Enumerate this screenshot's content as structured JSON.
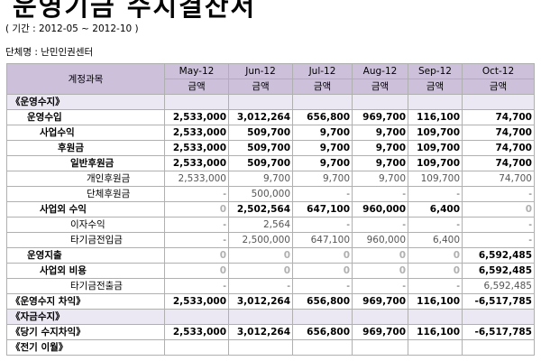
{
  "header": {
    "title": "운영기금 수지결산서",
    "period": "( 기간 :  2012-05 ~ 2012-10 )",
    "org": "단체명 : 난민인권센터"
  },
  "table": {
    "account_header": "계정과목",
    "months": [
      "May-12",
      "Jun-12",
      "Jul-12",
      "Aug-12",
      "Sep-12",
      "Oct-12"
    ],
    "amount_label": "금액",
    "rows": [
      {
        "name": "《운영수지》",
        "indent": 0,
        "style": "shade",
        "values": [
          "",
          "",
          "",
          "",
          "",
          ""
        ]
      },
      {
        "name": "운영수입",
        "indent": 1,
        "style": "bold",
        "values": [
          "2,533,000",
          "3,012,264",
          "656,800",
          "969,700",
          "116,100",
          "74,700"
        ]
      },
      {
        "name": "사업수익",
        "indent": 2,
        "style": "bold",
        "values": [
          "2,533,000",
          "509,700",
          "9,700",
          "9,700",
          "109,700",
          "74,700"
        ]
      },
      {
        "name": "후원금",
        "indent": 3,
        "style": "bold",
        "values": [
          "2,533,000",
          "509,700",
          "9,700",
          "9,700",
          "109,700",
          "74,700"
        ]
      },
      {
        "name": "일반후원금",
        "indent": 4,
        "style": "bold",
        "values": [
          "2,533,000",
          "509,700",
          "9,700",
          "9,700",
          "109,700",
          "74,700"
        ]
      },
      {
        "name": "개인후원금",
        "indent": 5,
        "style": "light",
        "values": [
          "2,533,000",
          "9,700",
          "9,700",
          "9,700",
          "109,700",
          "74,700"
        ]
      },
      {
        "name": "단체후원금",
        "indent": 5,
        "style": "light",
        "values": [
          "-",
          "500,000",
          "-",
          "-",
          "-",
          "-"
        ]
      },
      {
        "name": "사업외 수익",
        "indent": 2,
        "style": "bold",
        "values": [
          "0",
          "2,502,564",
          "647,100",
          "960,000",
          "6,400",
          "0"
        ]
      },
      {
        "name": "이자수익",
        "indent": 4,
        "style": "light",
        "values": [
          "-",
          "2,564",
          "-",
          "-",
          "-",
          "-"
        ]
      },
      {
        "name": "타기금전입금",
        "indent": 4,
        "style": "light",
        "values": [
          "-",
          "2,500,000",
          "647,100",
          "960,000",
          "6,400",
          "-"
        ]
      },
      {
        "name": "운영지출",
        "indent": 1,
        "style": "bold",
        "values": [
          "0",
          "0",
          "0",
          "0",
          "0",
          "6,592,485"
        ]
      },
      {
        "name": "사업외 비용",
        "indent": 2,
        "style": "bold",
        "values": [
          "0",
          "0",
          "0",
          "0",
          "0",
          "6,592,485"
        ]
      },
      {
        "name": "타기금전출금",
        "indent": 4,
        "style": "light",
        "values": [
          "-",
          "-",
          "-",
          "-",
          "-",
          "6,592,485"
        ]
      },
      {
        "name": "《운영수지 차익》",
        "indent": 0,
        "style": "bold",
        "values": [
          "2,533,000",
          "3,012,264",
          "656,800",
          "969,700",
          "116,100",
          "-6,517,785"
        ]
      },
      {
        "name": "《자금수지》",
        "indent": 0,
        "style": "shade",
        "values": [
          "",
          "",
          "",
          "",
          "",
          ""
        ]
      },
      {
        "name": "《당기 수지차익》",
        "indent": 0,
        "style": "bold",
        "values": [
          "2,533,000",
          "3,012,264",
          "656,800",
          "969,700",
          "116,100",
          "-6,517,785"
        ]
      },
      {
        "name": "《전기 이월》",
        "indent": 0,
        "style": "bold",
        "values": [
          "",
          "",
          "",
          "",
          "",
          ""
        ]
      }
    ]
  }
}
